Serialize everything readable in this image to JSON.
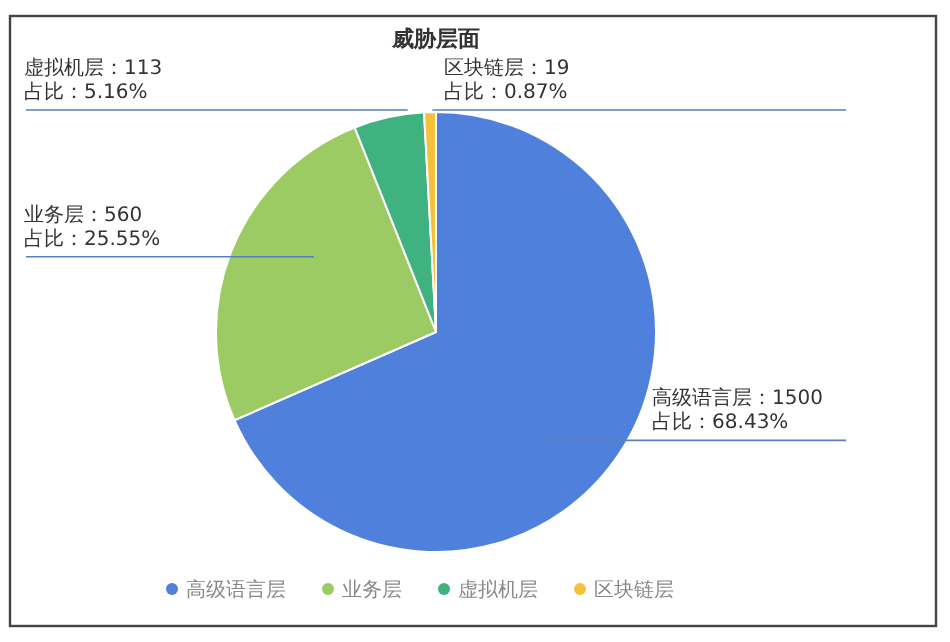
{
  "chart_data": {
    "type": "pie",
    "title": "威胁层面",
    "categories": [
      "高级语言层",
      "业务层",
      "虚拟机层",
      "区块链层"
    ],
    "values": [
      1500,
      560,
      113,
      19
    ],
    "colors": [
      "#4f81dc",
      "#9ccb63",
      "#3fb27f",
      "#f4c13a"
    ],
    "value_labels": [
      "高级语言层：1500\n占比：68.43%",
      "业务层：560\n占比：25.55%",
      "虚拟机层：113\n占比：5.16%",
      "区块链层：19\n占比：0.87%"
    ],
    "legend": "bottom"
  }
}
